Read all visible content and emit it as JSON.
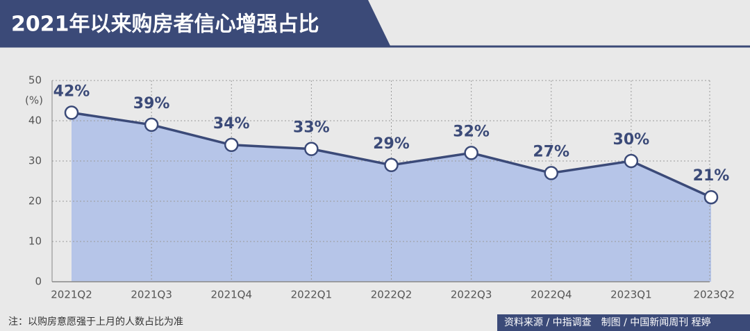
{
  "chart_data": {
    "type": "area",
    "title": "2021年以来购房者信心增强占比",
    "categories": [
      "2021Q2",
      "2021Q3",
      "2021Q4",
      "2022Q1",
      "2022Q2",
      "2022Q3",
      "2022Q4",
      "2023Q1",
      "2023Q2"
    ],
    "values": [
      42,
      39,
      34,
      33,
      29,
      32,
      27,
      30,
      21
    ],
    "value_labels": [
      "42%",
      "39%",
      "34%",
      "33%",
      "29%",
      "32%",
      "27%",
      "30%",
      "21%"
    ],
    "ylabel": "(%)",
    "ylim": [
      0,
      50
    ],
    "yticks": [
      0,
      10,
      20,
      30,
      40,
      50
    ],
    "color": "#3b4a78",
    "fill": "#b6c5e8",
    "grid": true,
    "note": "注：以购房意愿强于上月的人数占比为准",
    "source": "资料来源 / 中指调查　制图 / 中国新闻周刊  程婷"
  }
}
